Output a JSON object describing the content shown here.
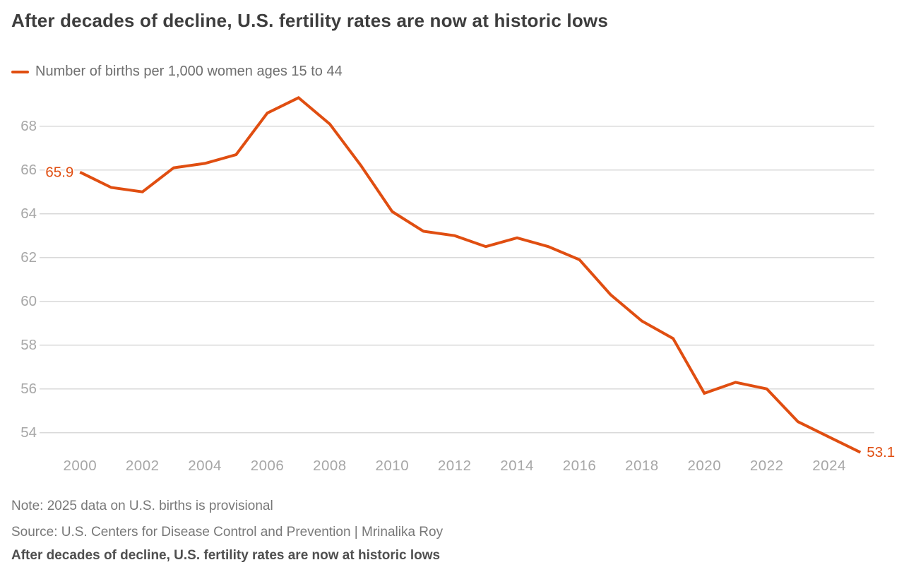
{
  "header": {
    "title": "After decades of decline, U.S. fertility rates are now at historic lows"
  },
  "legend": {
    "label": "Number of births per 1,000 women ages 15 to 44"
  },
  "chart_data": {
    "type": "line",
    "title": "After decades of decline, U.S. fertility rates are now at historic lows",
    "xlabel": "",
    "ylabel": "",
    "x": [
      2000,
      2001,
      2002,
      2003,
      2004,
      2005,
      2006,
      2007,
      2008,
      2009,
      2010,
      2011,
      2012,
      2013,
      2014,
      2015,
      2016,
      2017,
      2018,
      2019,
      2020,
      2021,
      2022,
      2023,
      2024,
      2025
    ],
    "series": [
      {
        "name": "Number of births per 1,000 women ages 15 to 44",
        "color": "#e04e11",
        "values": [
          65.9,
          65.2,
          65.0,
          66.1,
          66.3,
          66.7,
          68.6,
          69.3,
          68.1,
          66.2,
          64.1,
          63.2,
          63.0,
          62.5,
          62.9,
          62.5,
          61.9,
          60.3,
          59.1,
          58.3,
          55.8,
          56.3,
          56.0,
          54.5,
          53.8,
          53.1
        ]
      }
    ],
    "yticks": [
      54,
      56,
      58,
      60,
      62,
      64,
      66,
      68
    ],
    "xticks": [
      2000,
      2002,
      2004,
      2006,
      2008,
      2010,
      2012,
      2014,
      2016,
      2018,
      2020,
      2022,
      2024
    ],
    "ylim": [
      52.8,
      69.6
    ],
    "grid": "horizontal-only",
    "legend_position": "top-left",
    "point_labels": {
      "first": "65.9",
      "last": "53.1"
    }
  },
  "footer": {
    "note": "Note: 2025 data on U.S. births is provisional",
    "source": "Source: U.S. Centers for Disease Control and Prevention | Mrinalika Roy",
    "headline": "After decades of decline, U.S. fertility rates are now at historic lows"
  },
  "colors": {
    "line": "#e04e11",
    "grid": "#d9d9d9",
    "axis_text": "#a7a7a7",
    "background": "#ffffff"
  }
}
